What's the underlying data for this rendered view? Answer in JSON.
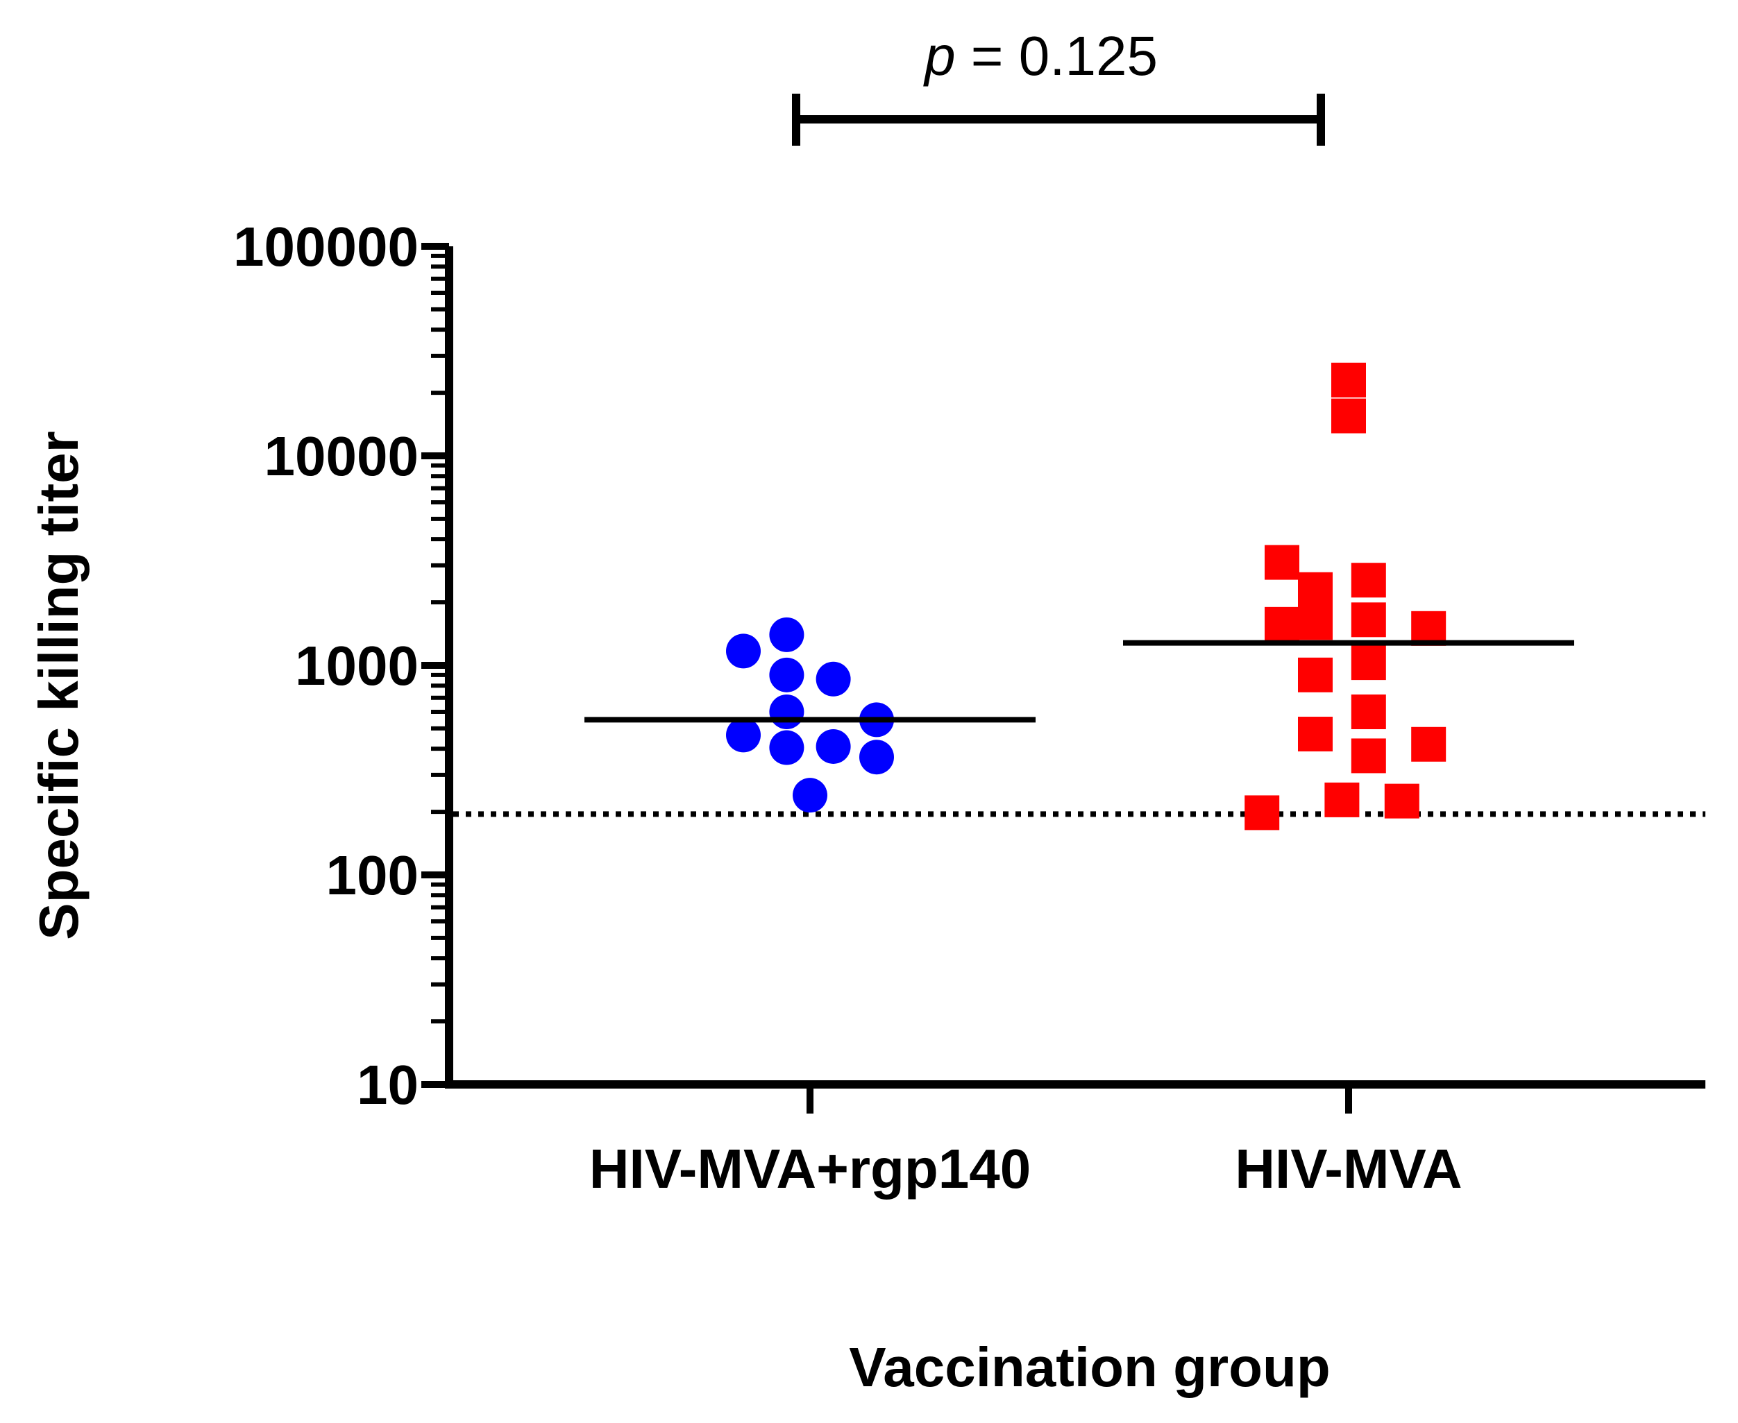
{
  "chart_data": {
    "type": "scatter",
    "subtype": "dot-plot",
    "ylabel": "Specific killing titer",
    "xlabel": "Vaccination group",
    "yscale": "log",
    "ylim": [
      10,
      100000
    ],
    "yticks": [
      10,
      100,
      1000,
      10000,
      100000
    ],
    "ytick_labels": [
      "10",
      "100",
      "1000",
      "10000",
      "100000"
    ],
    "categories": [
      "HIV-MVA+rgp140",
      "HIV-MVA"
    ],
    "series": [
      {
        "name": "HIV-MVA+rgp140",
        "marker": "circle",
        "color": "#0000ff",
        "median": 550,
        "points": [
          {
            "jitter": -2,
            "value": 1170
          },
          {
            "jitter": -2,
            "value": 465
          },
          {
            "jitter": -0.7,
            "value": 1400
          },
          {
            "jitter": -0.7,
            "value": 900
          },
          {
            "jitter": -0.7,
            "value": 600
          },
          {
            "jitter": -0.7,
            "value": 405
          },
          {
            "jitter": 0,
            "value": 240
          },
          {
            "jitter": 0.7,
            "value": 860
          },
          {
            "jitter": 0.7,
            "value": 410
          },
          {
            "jitter": 2,
            "value": 550
          },
          {
            "jitter": 2,
            "value": 365
          }
        ]
      },
      {
        "name": "HIV-MVA",
        "marker": "square",
        "color": "#ff0000",
        "median": 1280,
        "points": [
          {
            "jitter": 0,
            "value": 23000
          },
          {
            "jitter": 0,
            "value": 15500
          },
          {
            "jitter": -2,
            "value": 3100
          },
          {
            "jitter": -2,
            "value": 1570
          },
          {
            "jitter": -2.6,
            "value": 198
          },
          {
            "jitter": -1,
            "value": 2300
          },
          {
            "jitter": -1,
            "value": 1600
          },
          {
            "jitter": -1,
            "value": 900
          },
          {
            "jitter": -1,
            "value": 470
          },
          {
            "jitter": -0.2,
            "value": 228
          },
          {
            "jitter": 0.6,
            "value": 2550
          },
          {
            "jitter": 0.6,
            "value": 1650
          },
          {
            "jitter": 0.6,
            "value": 1030
          },
          {
            "jitter": 0.6,
            "value": 600
          },
          {
            "jitter": 0.6,
            "value": 370
          },
          {
            "jitter": 1.6,
            "value": 225
          },
          {
            "jitter": 2.4,
            "value": 1500
          },
          {
            "jitter": 2.4,
            "value": 420
          }
        ]
      }
    ],
    "reference_line": {
      "value": 195,
      "style": "dotted"
    },
    "annotations": [
      {
        "text_italic": "p",
        "text": " = 0.125",
        "between": [
          "HIV-MVA+rgp140",
          "HIV-MVA"
        ]
      }
    ]
  }
}
